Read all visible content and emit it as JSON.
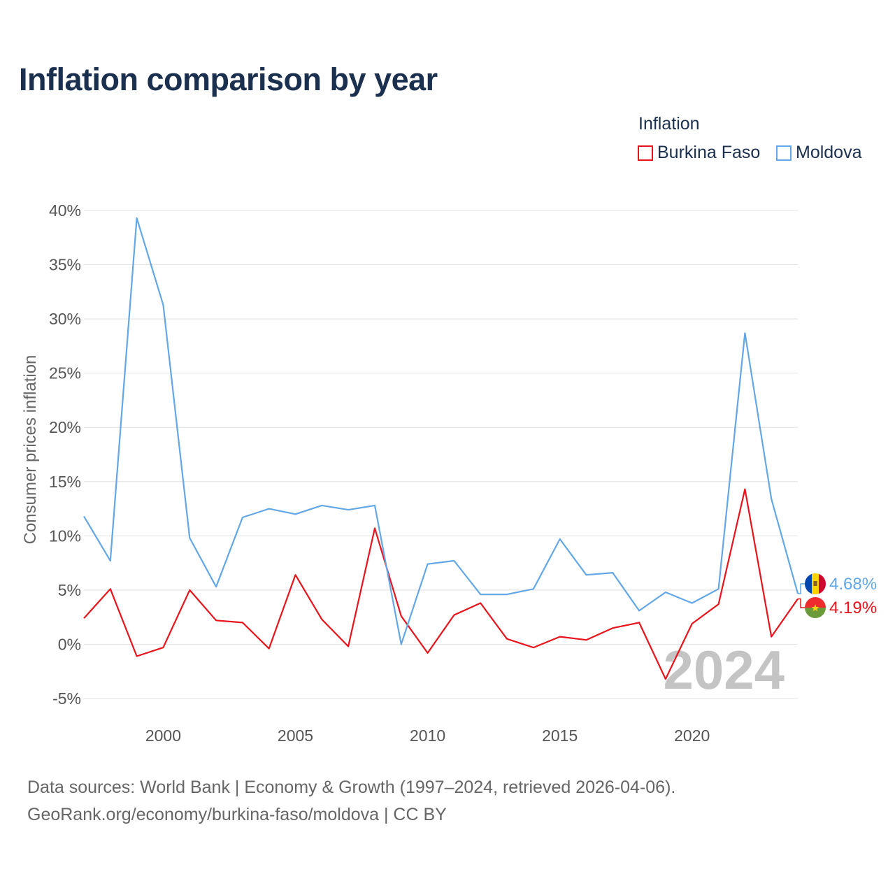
{
  "title": "Inflation comparison by year",
  "legend": {
    "title": "Inflation",
    "items": [
      {
        "label": "Burkina Faso",
        "color": "#e8141c"
      },
      {
        "label": "Moldova",
        "color": "#63a7e6"
      }
    ]
  },
  "footer": {
    "line1": "Data sources: World Bank | Economy & Growth (1997–2024, retrieved 2026-04-06).",
    "line2": "GeoRank.org/economy/burkina-faso/moldova | CC BY"
  },
  "chart_data": {
    "type": "line",
    "title": "Inflation comparison by year",
    "xlabel": "",
    "ylabel": "Consumer prices inflation",
    "x": [
      1997,
      1998,
      1999,
      2000,
      2001,
      2002,
      2003,
      2004,
      2005,
      2006,
      2007,
      2008,
      2009,
      2010,
      2011,
      2012,
      2013,
      2014,
      2015,
      2016,
      2017,
      2018,
      2019,
      2020,
      2021,
      2022,
      2023,
      2024
    ],
    "xlim": [
      1997,
      2024
    ],
    "ylim": [
      -5,
      40
    ],
    "x_ticks": [
      2000,
      2005,
      2010,
      2015,
      2020
    ],
    "y_ticks": [
      -5,
      0,
      5,
      10,
      15,
      20,
      25,
      30,
      35,
      40
    ],
    "y_tick_labels": [
      "-5%",
      "0%",
      "5%",
      "10%",
      "15%",
      "20%",
      "25%",
      "30%",
      "35%",
      "40%"
    ],
    "grid": true,
    "watermark_year": "2024",
    "series": [
      {
        "name": "Burkina Faso",
        "color": "#e8141c",
        "values": [
          2.4,
          5.1,
          -1.1,
          -0.3,
          5.0,
          2.2,
          2.0,
          -0.4,
          6.4,
          2.3,
          -0.2,
          10.7,
          2.6,
          -0.8,
          2.7,
          3.8,
          0.5,
          -0.3,
          0.7,
          0.4,
          1.5,
          2.0,
          -3.2,
          1.9,
          3.7,
          14.3,
          0.7,
          4.19
        ],
        "end_label": "4.19%"
      },
      {
        "name": "Moldova",
        "color": "#63a7e6",
        "values": [
          11.8,
          7.7,
          39.3,
          31.3,
          9.8,
          5.3,
          11.7,
          12.5,
          12.0,
          12.8,
          12.4,
          12.8,
          0.0,
          7.4,
          7.7,
          4.6,
          4.6,
          5.1,
          9.7,
          6.4,
          6.6,
          3.1,
          4.8,
          3.8,
          5.1,
          28.7,
          13.4,
          4.68
        ],
        "end_label": "4.68%"
      }
    ]
  }
}
